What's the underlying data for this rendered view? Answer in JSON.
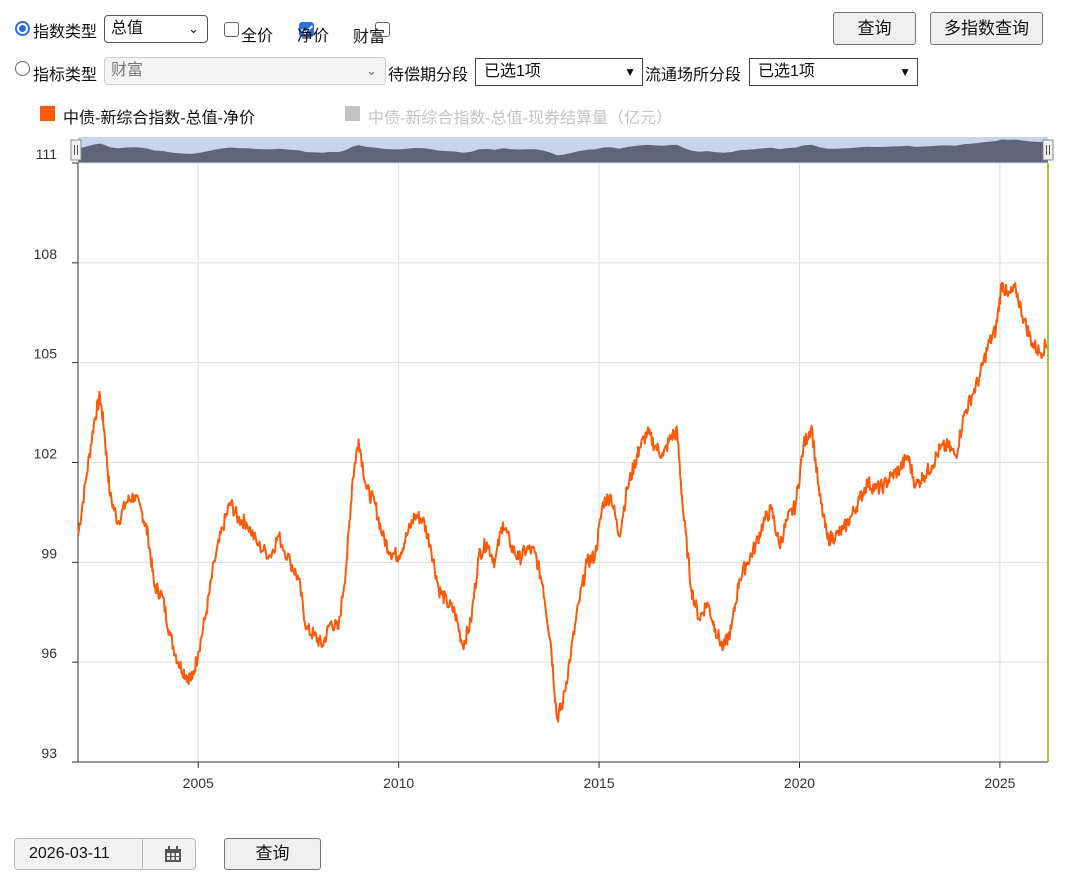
{
  "controls": {
    "index_type_label": "指数类型",
    "index_type_value": "总值",
    "checkbox_full": "全价",
    "checkbox_net": "净价",
    "checkbox_wealth": "财富",
    "metric_type_label": "指标类型",
    "metric_type_value": "财富",
    "maturity_label": "待偿期分段",
    "maturity_value": "已选1项",
    "venue_label": "流通场所分段",
    "venue_value": "已选1项",
    "query_button": "查询",
    "multi_query_button": "多指数查询",
    "date_value": "2026-03-11",
    "bottom_query_button": "查询"
  },
  "colors": {
    "series": "#fa5a0a",
    "series_inactive": "#c4c4c4",
    "accent": "#2a6fdb",
    "end_line": "#9acd32"
  },
  "icons": {
    "calendar": "calendar-icon"
  },
  "chart_data": {
    "type": "line",
    "title": "",
    "xlabel": "",
    "ylabel": "",
    "xlim": [
      2002.0,
      2026.2
    ],
    "ylim": [
      93,
      111
    ],
    "yticks": [
      93,
      96,
      99,
      102,
      105,
      108,
      111
    ],
    "xticks": [
      2005,
      2010,
      2015,
      2020,
      2025
    ],
    "grid": true,
    "legend_position": "top-left",
    "series": [
      {
        "name": "中债-新综合指数-总值-净价",
        "active": true,
        "x": [
          2002.0,
          2002.2,
          2002.4,
          2002.55,
          2002.65,
          2002.8,
          2003.0,
          2003.2,
          2003.4,
          2003.6,
          2003.75,
          2003.9,
          2004.1,
          2004.3,
          2004.5,
          2004.7,
          2004.85,
          2005.0,
          2005.2,
          2005.4,
          2005.6,
          2005.8,
          2006.0,
          2006.2,
          2006.5,
          2006.8,
          2007.0,
          2007.3,
          2007.5,
          2007.7,
          2007.9,
          2008.1,
          2008.3,
          2008.5,
          2008.7,
          2008.85,
          2009.0,
          2009.2,
          2009.4,
          2009.6,
          2009.8,
          2010.0,
          2010.2,
          2010.4,
          2010.6,
          2010.8,
          2011.0,
          2011.2,
          2011.4,
          2011.6,
          2011.8,
          2012.0,
          2012.2,
          2012.4,
          2012.6,
          2012.8,
          2013.0,
          2013.2,
          2013.4,
          2013.6,
          2013.8,
          2013.95,
          2014.1,
          2014.3,
          2014.5,
          2014.7,
          2014.9,
          2015.1,
          2015.3,
          2015.5,
          2015.7,
          2015.9,
          2016.0,
          2016.2,
          2016.4,
          2016.6,
          2016.8,
          2016.95,
          2017.1,
          2017.3,
          2017.5,
          2017.7,
          2017.9,
          2018.1,
          2018.3,
          2018.5,
          2018.7,
          2018.9,
          2019.1,
          2019.3,
          2019.5,
          2019.7,
          2019.9,
          2020.1,
          2020.3,
          2020.5,
          2020.7,
          2020.9,
          2021.1,
          2021.3,
          2021.5,
          2021.7,
          2021.9,
          2022.1,
          2022.3,
          2022.5,
          2022.7,
          2022.9,
          2023.1,
          2023.3,
          2023.5,
          2023.7,
          2023.9,
          2024.1,
          2024.3,
          2024.5,
          2024.7,
          2024.9,
          2025.05,
          2025.2,
          2025.4,
          2025.6,
          2025.8,
          2026.0,
          2026.2
        ],
        "values": [
          99.8,
          101.5,
          103.2,
          104.0,
          103.0,
          101.0,
          100.2,
          100.8,
          101.0,
          100.5,
          99.8,
          98.3,
          98.0,
          96.8,
          96.0,
          95.6,
          95.5,
          96.3,
          97.5,
          99.0,
          100.0,
          100.8,
          100.3,
          100.2,
          99.5,
          99.2,
          99.8,
          99.0,
          98.5,
          97.0,
          96.8,
          96.5,
          97.2,
          97.0,
          99.0,
          101.5,
          102.7,
          101.2,
          100.8,
          99.8,
          99.3,
          99.2,
          99.8,
          100.4,
          100.3,
          99.5,
          98.2,
          97.8,
          97.5,
          96.5,
          97.2,
          99.2,
          99.6,
          99.0,
          100.2,
          99.5,
          99.1,
          99.4,
          99.3,
          98.3,
          96.5,
          94.3,
          94.8,
          96.3,
          97.8,
          99.0,
          99.2,
          100.8,
          101.0,
          99.8,
          101.2,
          102.0,
          102.4,
          102.9,
          102.5,
          102.2,
          102.8,
          102.9,
          100.5,
          98.2,
          97.3,
          97.8,
          97.0,
          96.4,
          97.0,
          98.5,
          99.0,
          99.5,
          100.2,
          100.6,
          99.5,
          100.3,
          100.7,
          102.5,
          103.1,
          101.0,
          99.7,
          99.8,
          100.0,
          100.4,
          100.9,
          101.4,
          101.2,
          101.3,
          101.6,
          101.8,
          102.2,
          101.3,
          101.6,
          101.9,
          102.4,
          102.5,
          102.2,
          103.4,
          104.0,
          104.6,
          105.5,
          106.0,
          107.4,
          107.0,
          107.2,
          106.3,
          105.6,
          105.3,
          105.6
        ]
      },
      {
        "name": "中债-新综合指数-总值-现券结算量（亿元）",
        "active": false
      }
    ]
  }
}
